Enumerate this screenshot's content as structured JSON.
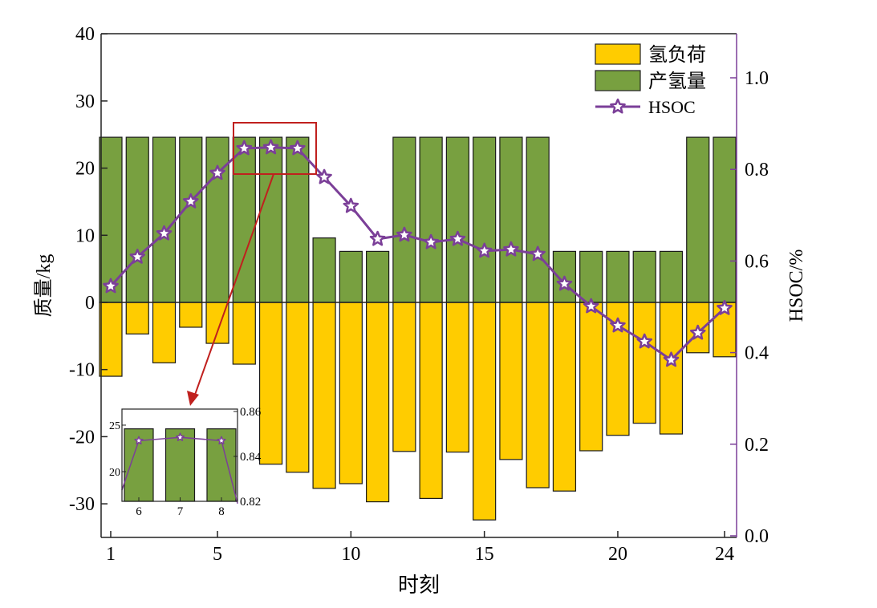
{
  "chart_data": {
    "type": "bar+line",
    "xlabel": "时刻",
    "ylabel": "质量/kg",
    "y2label": "HSOC/%",
    "x": [
      1,
      2,
      3,
      4,
      5,
      6,
      7,
      8,
      9,
      10,
      11,
      12,
      13,
      14,
      15,
      16,
      17,
      18,
      19,
      20,
      21,
      22,
      23,
      24
    ],
    "xticks": [
      1,
      5,
      10,
      15,
      20,
      24
    ],
    "ylim": [
      -35,
      40
    ],
    "yticks": [
      -30,
      -20,
      -10,
      0,
      10,
      20,
      30,
      40
    ],
    "y2lim": [
      0.0,
      1.1
    ],
    "y2ticks": [
      "0.0",
      "0.2",
      "0.4",
      "0.6",
      "0.8",
      "1.0"
    ],
    "legend_position": "top-right",
    "series": [
      {
        "name": "氢负荷",
        "type": "bar",
        "axis": "left",
        "color": "#FFCC00",
        "values": [
          -11.0,
          -4.7,
          -9.0,
          -3.7,
          -6.1,
          -9.2,
          -24.1,
          -25.3,
          -27.7,
          -27.0,
          -29.7,
          -22.2,
          -29.2,
          -22.3,
          -32.4,
          -23.4,
          -27.6,
          -28.1,
          -22.1,
          -19.8,
          -18.0,
          -19.6,
          -7.5,
          -8.1
        ]
      },
      {
        "name": "产氢量",
        "type": "bar",
        "axis": "left",
        "color": "#78A040",
        "values": [
          24.6,
          24.6,
          24.6,
          24.6,
          24.6,
          24.6,
          24.6,
          24.6,
          9.6,
          7.6,
          7.6,
          24.6,
          24.6,
          24.6,
          24.6,
          24.6,
          24.6,
          7.6,
          7.6,
          7.6,
          7.6,
          7.6,
          24.6,
          24.6
        ]
      },
      {
        "name": "HSOC",
        "type": "line",
        "axis": "right",
        "color": "#7B3F98",
        "marker": "star",
        "values": [
          0.545,
          0.609,
          0.66,
          0.73,
          0.792,
          0.846,
          0.848,
          0.846,
          0.783,
          0.72,
          0.648,
          0.657,
          0.641,
          0.648,
          0.622,
          0.625,
          0.615,
          0.55,
          0.501,
          0.459,
          0.424,
          0.384,
          0.443,
          0.497
        ]
      }
    ],
    "inset": {
      "x": [
        6,
        7,
        8
      ],
      "xticks": [
        "6",
        "7",
        "8"
      ],
      "yticks": [
        "20",
        "25"
      ],
      "y2ticks": [
        "0.82",
        "0.84",
        "0.86"
      ],
      "ylim": [
        16.8,
        26.7
      ],
      "y2lim": [
        0.82,
        0.86
      ]
    },
    "annotation_color": "#C0201E"
  }
}
